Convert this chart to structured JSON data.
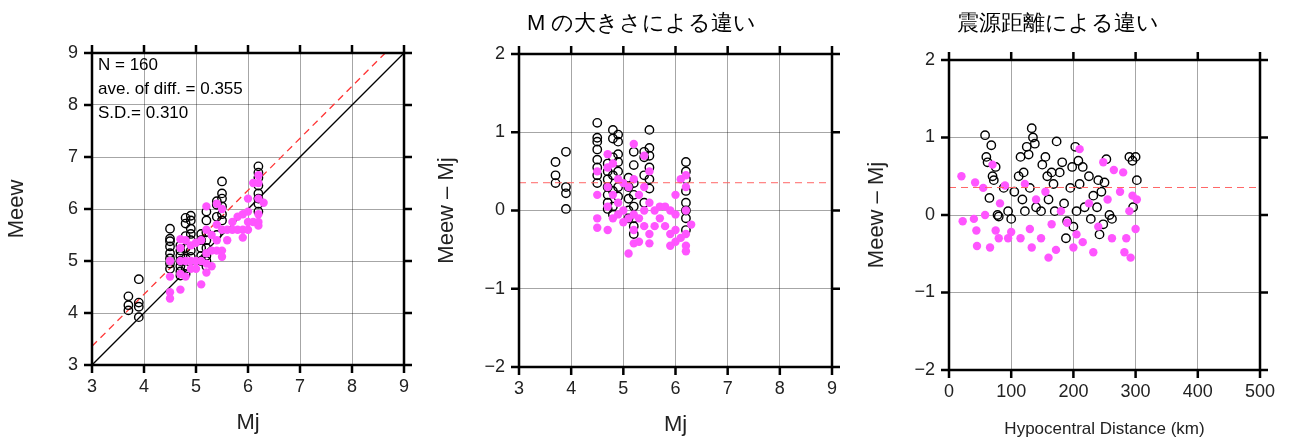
{
  "chart_data": [
    {
      "type": "scatter",
      "xlabel": "Mj",
      "ylabel": "Meew",
      "xlim": [
        3,
        9
      ],
      "ylim": [
        3,
        9
      ],
      "xticks": [
        3,
        4,
        5,
        6,
        7,
        8,
        9
      ],
      "yticks": [
        3,
        4,
        5,
        6,
        7,
        8,
        9
      ],
      "grid": true,
      "legend": false,
      "marker": "circle",
      "annotations": [
        "N = 160",
        "ave. of diff. = 0.355",
        "S.D.= 0.310"
      ],
      "series": [
        {
          "color": "#ff55ff",
          "x": [
            4.5,
            4.5,
            4.5,
            4.5,
            4.7,
            4.7,
            4.7,
            4.7,
            4.7,
            4.8,
            4.8,
            4.8,
            4.9,
            4.9,
            4.9,
            5.0,
            5.0,
            5.0,
            5.1,
            5.1,
            5.1,
            5.2,
            5.2,
            5.2,
            5.2,
            5.2,
            5.3,
            5.3,
            5.3,
            5.4,
            5.4,
            5.4,
            5.4,
            5.5,
            5.5,
            5.5,
            5.5,
            5.6,
            5.6,
            5.7,
            5.7,
            5.8,
            5.8,
            5.9,
            5.9,
            5.9,
            6.0,
            6.0,
            6.0,
            6.0,
            6.1,
            6.1,
            6.2,
            6.2,
            6.2,
            6.2,
            6.2,
            6.2,
            6.3
          ],
          "values": [
            5.0,
            4.7,
            4.4,
            4.28,
            5.42,
            5.25,
            5.0,
            4.75,
            4.45,
            5.4,
            5.0,
            4.7,
            5.3,
            5.0,
            4.85,
            5.35,
            5.0,
            4.85,
            5.4,
            5.0,
            4.55,
            6.05,
            5.6,
            5.15,
            4.95,
            4.78,
            5.5,
            5.2,
            4.9,
            6.1,
            5.7,
            5.4,
            5.2,
            6.0,
            5.6,
            5.2,
            5.08,
            5.6,
            5.4,
            5.75,
            5.6,
            5.85,
            5.6,
            5.9,
            5.6,
            5.45,
            6.2,
            5.95,
            5.75,
            5.6,
            6.5,
            5.75,
            6.65,
            6.5,
            6.2,
            5.9,
            5.75,
            5.68,
            6.12
          ]
        },
        {
          "color": "#000000",
          "x": [
            3.7,
            3.7,
            3.7,
            3.9,
            3.9,
            3.9,
            3.9,
            4.5,
            4.5,
            4.5,
            4.5,
            4.5,
            4.5,
            4.5,
            4.5,
            4.7,
            4.7,
            4.7,
            4.7,
            4.7,
            4.7,
            4.7,
            4.8,
            4.8,
            4.8,
            4.8,
            4.8,
            4.8,
            4.8,
            4.9,
            4.9,
            4.9,
            4.9,
            4.9,
            4.9,
            4.9,
            5.1,
            5.1,
            5.1,
            5.1,
            5.1,
            5.2,
            5.2,
            5.2,
            5.2,
            5.2,
            5.2,
            5.2,
            5.2,
            5.4,
            5.4,
            5.4,
            5.4,
            5.5,
            5.5,
            5.5,
            5.5,
            5.5,
            5.5,
            6.2,
            6.2,
            6.2,
            6.2,
            6.2,
            6.2,
            6.2,
            6.2
          ],
          "values": [
            4.32,
            4.15,
            4.05,
            4.65,
            4.2,
            4.12,
            3.92,
            5.62,
            5.43,
            5.38,
            5.28,
            5.15,
            5.05,
            4.95,
            4.85,
            5.3,
            5.2,
            5.1,
            5.0,
            4.9,
            4.8,
            4.72,
            5.83,
            5.72,
            5.48,
            5.25,
            5.05,
            4.85,
            4.75,
            5.87,
            5.78,
            5.62,
            5.52,
            5.4,
            5.2,
            5.08,
            5.52,
            5.4,
            5.25,
            5.1,
            5.0,
            5.95,
            5.78,
            5.55,
            5.4,
            5.25,
            5.1,
            5.0,
            4.9,
            6.15,
            6.08,
            5.85,
            5.5,
            6.53,
            6.3,
            6.2,
            6.05,
            5.9,
            5.78,
            6.82,
            6.7,
            6.6,
            6.45,
            6.3,
            6.2,
            6.1,
            5.95
          ]
        },
        {
          "type": "line",
          "color": "#000000",
          "marker": "none",
          "line_style": "solid",
          "x": [
            3,
            9
          ],
          "values": [
            3,
            9
          ]
        },
        {
          "type": "line",
          "color": "#ff3333",
          "marker": "none",
          "line_style": "dashed",
          "x": [
            3,
            8.64
          ],
          "values": [
            3.36,
            9
          ]
        }
      ]
    },
    {
      "type": "scatter",
      "title": "M の大きさによる違い",
      "xlabel": "Mj",
      "ylabel": "Meew – Mj",
      "xlim": [
        3,
        9
      ],
      "ylim": [
        -2,
        2
      ],
      "xticks": [
        3,
        4,
        5,
        6,
        7,
        8,
        9
      ],
      "yticks": [
        -2,
        -1,
        0,
        1,
        2
      ],
      "grid": true,
      "legend": false,
      "marker": "circle",
      "ref_lines": [
        {
          "axis": "y",
          "value": 0.355,
          "color": "#ff6666",
          "line_style": "dashed"
        }
      ],
      "series": [
        {
          "color": "#ff55ff",
          "x": [
            4.5,
            4.5,
            4.5,
            4.5,
            4.7,
            4.7,
            4.7,
            4.7,
            4.7,
            4.8,
            4.8,
            4.8,
            4.9,
            4.9,
            4.9,
            5.0,
            5.0,
            5.0,
            5.1,
            5.1,
            5.1,
            5.2,
            5.2,
            5.2,
            5.2,
            5.2,
            5.3,
            5.3,
            5.3,
            5.4,
            5.4,
            5.4,
            5.4,
            5.5,
            5.5,
            5.5,
            5.5,
            5.6,
            5.6,
            5.7,
            5.7,
            5.8,
            5.8,
            5.9,
            5.9,
            5.9,
            6.0,
            6.0,
            6.0,
            6.0,
            6.1,
            6.1,
            6.2,
            6.2,
            6.2,
            6.2,
            6.2,
            6.2,
            6.3
          ],
          "values": [
            0.5,
            0.2,
            -0.1,
            -0.22,
            0.72,
            0.55,
            0.3,
            0.05,
            -0.25,
            0.6,
            0.2,
            -0.1,
            0.4,
            0.1,
            -0.05,
            0.35,
            0.0,
            -0.15,
            0.3,
            -0.1,
            -0.55,
            0.85,
            0.4,
            -0.05,
            -0.25,
            -0.42,
            0.2,
            -0.1,
            -0.4,
            0.7,
            0.3,
            0.0,
            -0.2,
            0.5,
            0.1,
            -0.3,
            -0.42,
            0.0,
            -0.2,
            0.05,
            -0.1,
            0.05,
            -0.2,
            0.0,
            -0.3,
            -0.45,
            0.2,
            -0.05,
            -0.25,
            -0.4,
            0.4,
            -0.35,
            0.45,
            0.3,
            0.0,
            -0.3,
            -0.45,
            -0.52,
            -0.18
          ]
        },
        {
          "color": "#000000",
          "x": [
            3.7,
            3.7,
            3.7,
            3.9,
            3.9,
            3.9,
            3.9,
            4.5,
            4.5,
            4.5,
            4.5,
            4.5,
            4.5,
            4.5,
            4.5,
            4.7,
            4.7,
            4.7,
            4.7,
            4.7,
            4.7,
            4.7,
            4.8,
            4.8,
            4.8,
            4.8,
            4.8,
            4.8,
            4.8,
            4.9,
            4.9,
            4.9,
            4.9,
            4.9,
            4.9,
            4.9,
            5.1,
            5.1,
            5.1,
            5.1,
            5.1,
            5.2,
            5.2,
            5.2,
            5.2,
            5.2,
            5.2,
            5.2,
            5.2,
            5.4,
            5.4,
            5.4,
            5.4,
            5.5,
            5.5,
            5.5,
            5.5,
            5.5,
            5.5,
            6.2,
            6.2,
            6.2,
            6.2,
            6.2,
            6.2,
            6.2,
            6.2
          ],
          "values": [
            0.62,
            0.45,
            0.35,
            0.75,
            0.3,
            0.22,
            0.02,
            1.12,
            0.93,
            0.88,
            0.78,
            0.65,
            0.55,
            0.45,
            0.35,
            0.6,
            0.5,
            0.4,
            0.3,
            0.2,
            0.1,
            0.02,
            1.03,
            0.92,
            0.68,
            0.45,
            0.25,
            0.05,
            -0.05,
            0.97,
            0.88,
            0.72,
            0.62,
            0.5,
            0.3,
            0.18,
            0.42,
            0.3,
            0.15,
            0.0,
            -0.1,
            0.75,
            0.58,
            0.35,
            0.2,
            0.05,
            -0.1,
            -0.2,
            -0.3,
            0.75,
            0.68,
            0.45,
            0.1,
            1.03,
            0.8,
            0.7,
            0.55,
            0.4,
            0.28,
            0.62,
            0.5,
            0.4,
            0.25,
            0.1,
            0.0,
            -0.1,
            -0.25
          ]
        }
      ]
    },
    {
      "type": "scatter",
      "title": "震源距離による違い",
      "xlabel": "Hypocentral Distance (km)",
      "ylabel": "Meew – Mj",
      "xlim": [
        0,
        500
      ],
      "ylim": [
        -2,
        2
      ],
      "xticks": [
        0,
        100,
        200,
        300,
        400,
        500
      ],
      "yticks": [
        -2,
        -1,
        0,
        1,
        2
      ],
      "grid": true,
      "legend": false,
      "marker": "circle",
      "ref_lines": [
        {
          "axis": "y",
          "value": 0.355,
          "color": "#ff6666",
          "line_style": "dashed"
        }
      ],
      "series": [
        {
          "color": "#ff55ff",
          "x": [
            20,
            22,
            40,
            42,
            44,
            45,
            55,
            58,
            66,
            70,
            75,
            80,
            82,
            90,
            95,
            100,
            115,
            122,
            130,
            133,
            140,
            148,
            155,
            160,
            165,
            172,
            180,
            190,
            200,
            205,
            210,
            215,
            225,
            232,
            240,
            248,
            255,
            262,
            265,
            275,
            280,
            282,
            285,
            290,
            292,
            295,
            300,
            302
          ],
          "values": [
            0.5,
            -0.08,
            -0.05,
            0.42,
            -0.2,
            -0.4,
            0.35,
            0.0,
            -0.42,
            0.65,
            -0.2,
            -0.3,
            0.15,
            0.38,
            -0.3,
            -0.22,
            -0.3,
            0.4,
            -0.18,
            -0.42,
            0.2,
            -0.3,
            0.3,
            -0.55,
            -0.12,
            -0.45,
            0.05,
            -0.1,
            -0.42,
            -0.25,
            0.85,
            -0.35,
            0.15,
            -0.48,
            -0.15,
            0.68,
            0.2,
            -0.3,
            0.58,
            0.3,
            0.55,
            -0.48,
            -0.3,
            0.05,
            -0.55,
            0.25,
            -0.18,
            0.2
          ]
        },
        {
          "color": "#000000",
          "x": [
            58,
            60,
            62,
            65,
            68,
            70,
            72,
            75,
            78,
            80,
            88,
            95,
            100,
            105,
            112,
            115,
            118,
            120,
            122,
            125,
            128,
            130,
            133,
            135,
            138,
            140,
            148,
            150,
            155,
            158,
            160,
            165,
            168,
            170,
            173,
            178,
            182,
            185,
            188,
            190,
            195,
            198,
            200,
            203,
            205,
            208,
            210,
            215,
            218,
            225,
            228,
            232,
            238,
            240,
            242,
            245,
            248,
            250,
            253,
            258,
            262,
            290,
            295,
            296,
            300,
            302
          ],
          "values": [
            1.03,
            0.75,
            0.68,
            0.22,
            0.9,
            0.5,
            0.45,
            0.62,
            0.0,
            -0.02,
            0.35,
            0.05,
            -0.05,
            0.3,
            0.5,
            0.75,
            0.2,
            0.55,
            0.05,
            0.88,
            0.78,
            0.35,
            1.12,
            1.0,
            0.92,
            0.1,
            0.05,
            0.65,
            0.75,
            0.5,
            0.2,
            0.55,
            0.4,
            0.05,
            0.95,
            0.55,
            0.68,
            0.15,
            -0.3,
            -0.08,
            0.35,
            0.62,
            -0.15,
            0.88,
            0.05,
            0.7,
            0.4,
            0.62,
            0.1,
            0.5,
            -0.05,
            0.25,
            0.1,
            0.45,
            -0.25,
            0.3,
            -0.12,
            0.42,
            0.72,
            0.0,
            -0.05,
            0.75,
            0.7,
            0.1,
            0.75,
            0.45
          ]
        }
      ]
    }
  ]
}
